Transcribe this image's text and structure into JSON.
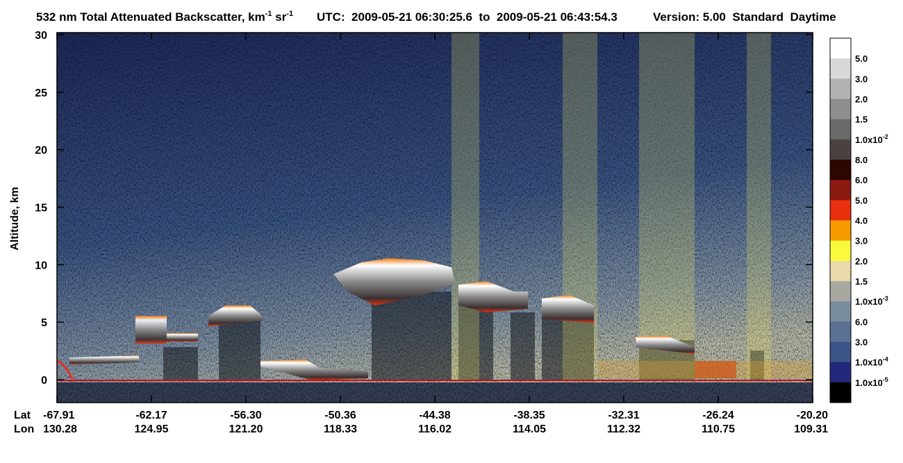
{
  "chart_data": {
    "type": "heatmap",
    "title": [
      "532 nm Total Attenuated Backscatter, km",
      "-1",
      " sr",
      "-1"
    ],
    "time_range": "UTC:  2009-05-21 06:30:25.6  to  2009-05-21 06:43:54.3",
    "version": "Version: 5.00  Standard  Daytime",
    "ylabel": "Altitude, km",
    "ylim": [
      -2,
      30
    ],
    "yticks": [
      0,
      5,
      10,
      15,
      20,
      25,
      30
    ],
    "x_row_names": [
      "Lat",
      "Lon"
    ],
    "lat": [
      "-67.91",
      "-62.17",
      "-56.30",
      "-50.36",
      "-44.38",
      "-38.35",
      "-32.31",
      "-26.24",
      "-20.20"
    ],
    "lon": [
      "130.28",
      "124.95",
      "121.20",
      "118.33",
      "116.02",
      "114.05",
      "112.32",
      "110.75",
      "109.31"
    ],
    "colorbar": {
      "colors": [
        "#ffffff",
        "#d8d8d8",
        "#b2b2b2",
        "#8e8e8e",
        "#6a6a6a",
        "#4a4240",
        "#2c0600",
        "#8a1a12",
        "#e8300e",
        "#f79a00",
        "#fafa3c",
        "#ead9a9",
        "#a7a9a1",
        "#7a8d9d",
        "#5a7191",
        "#3d5489",
        "#24287a",
        "#000000"
      ],
      "labels": [
        {
          "text": "5.0"
        },
        {
          "text": "3.0"
        },
        {
          "text": "2.0"
        },
        {
          "text": "1.5"
        },
        {
          "text": "1.0x10",
          "exp": "-2"
        },
        {
          "text": "8.0"
        },
        {
          "text": "6.0"
        },
        {
          "text": "5.0"
        },
        {
          "text": "4.0"
        },
        {
          "text": "3.0"
        },
        {
          "text": "2.0"
        },
        {
          "text": "1.5"
        },
        {
          "text": "1.0x10",
          "exp": "-3"
        },
        {
          "text": "6.0"
        },
        {
          "text": "3.0"
        },
        {
          "text": "1.0x10",
          "exp": "-4"
        },
        {
          "text": "1.0x10",
          "exp": "-5"
        }
      ]
    }
  }
}
